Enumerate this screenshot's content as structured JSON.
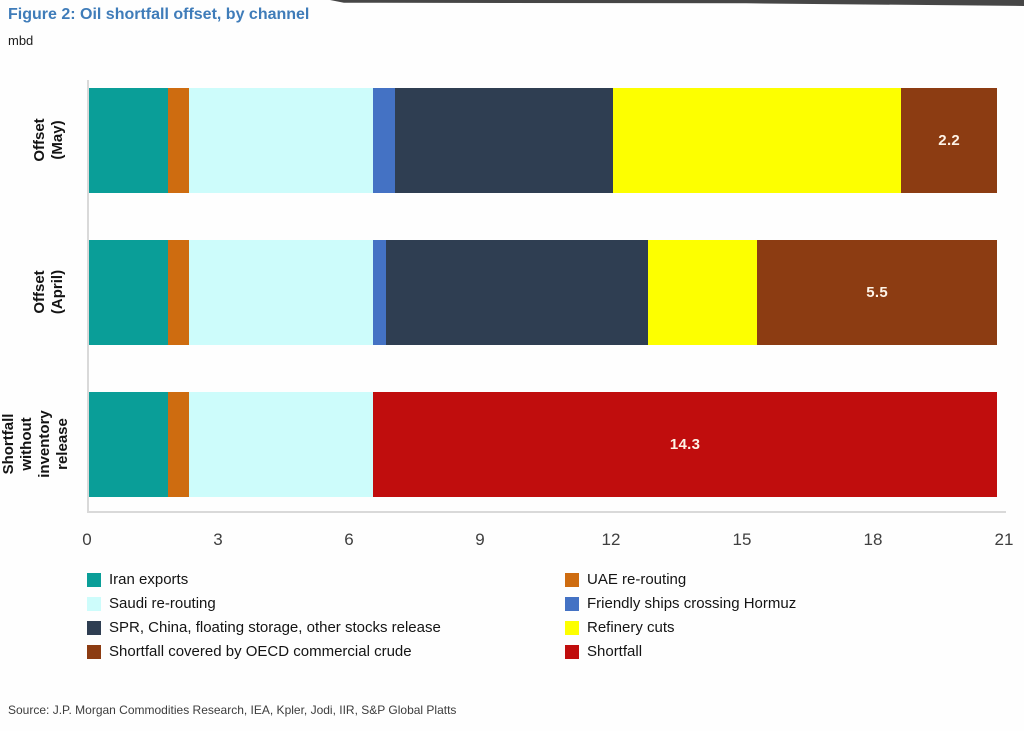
{
  "header": {
    "title": "Figure 2: Oil shortfall offset, by channel",
    "unit": "mbd"
  },
  "footer": {
    "source": "Source: J.P. Morgan Commodities Research, IEA, Kpler, Jodi, IIR, S&P Global Platts"
  },
  "colors": {
    "title": "#3f7cb9",
    "axis_line": "#d9d9d9",
    "axis_text": "#3f3f3f",
    "segment_label_text": "#fdf3e7"
  },
  "chart_data": {
    "type": "bar",
    "orientation": "horizontal",
    "stacked": true,
    "title": "Figure 2: Oil shortfall offset, by channel",
    "xlabel": "mbd",
    "xlim": [
      0,
      21
    ],
    "xticks": [
      0,
      3,
      6,
      9,
      12,
      15,
      18,
      21
    ],
    "grid": false,
    "legend_position": "bottom",
    "legend_columns": 2,
    "categories": [
      "Offset (May)",
      "Offset (April)",
      "Shortfall without\ninventory release"
    ],
    "series": [
      {
        "name": "Iran exports",
        "color": "#0a9e98",
        "values": [
          1.8,
          1.8,
          1.8
        ]
      },
      {
        "name": "UAE re-routing",
        "color": "#ce6c10",
        "values": [
          0.5,
          0.5,
          0.5
        ]
      },
      {
        "name": "Saudi re-routing",
        "color": "#cdfcfb",
        "values": [
          4.2,
          4.2,
          4.2
        ]
      },
      {
        "name": "Friendly ships crossing Hormuz",
        "color": "#4472c4",
        "values": [
          0.5,
          0.3,
          0
        ]
      },
      {
        "name": "SPR, China, floating storage, other stocks release",
        "color": "#2f3e52",
        "values": [
          5.0,
          6.0,
          0
        ]
      },
      {
        "name": "Refinery cuts",
        "color": "#fdff00",
        "values": [
          6.6,
          2.5,
          0
        ]
      },
      {
        "name": "Shortfall covered by OECD commercial crude",
        "color": "#8c3c12",
        "values": [
          2.2,
          5.5,
          0
        ]
      },
      {
        "name": "Shortfall",
        "color": "#c00d0d",
        "values": [
          0,
          0,
          14.3
        ]
      }
    ],
    "data_labels": [
      {
        "category": 0,
        "series": 6,
        "text": "2.2"
      },
      {
        "category": 1,
        "series": 6,
        "text": "5.5"
      },
      {
        "category": 2,
        "series": 7,
        "text": "14.3"
      }
    ]
  }
}
